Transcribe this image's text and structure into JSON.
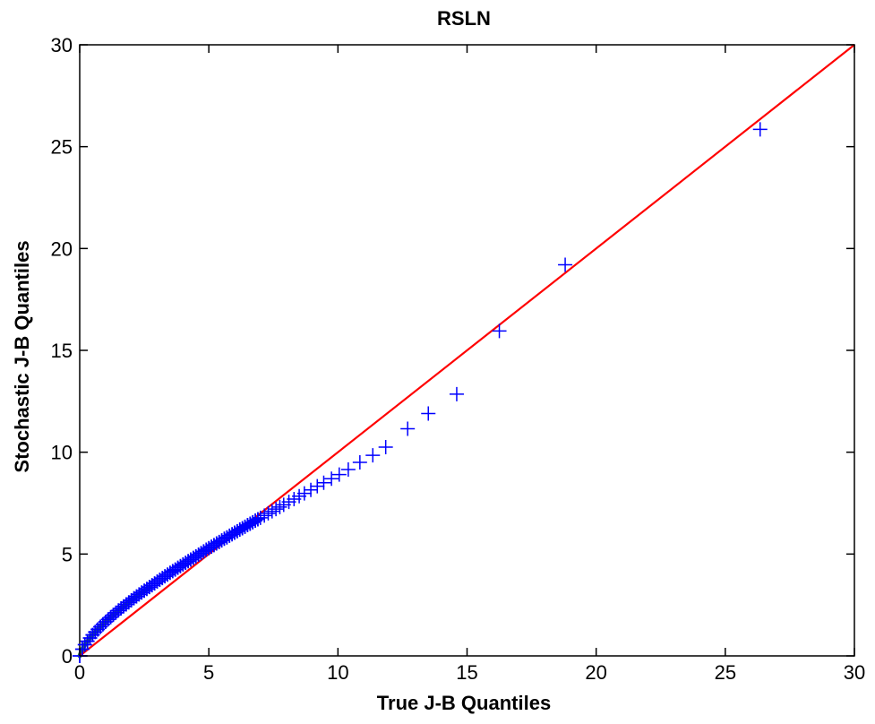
{
  "chart_data": {
    "type": "scatter",
    "title": "RSLN",
    "xlabel": "True J-B Quantiles",
    "ylabel": "Stochastic J-B Quantiles",
    "xlim": [
      0,
      30
    ],
    "ylim": [
      0,
      30
    ],
    "xticks": [
      0,
      5,
      10,
      15,
      20,
      25,
      30
    ],
    "yticks": [
      0,
      5,
      10,
      15,
      20,
      25,
      30
    ],
    "grid": false,
    "colors": {
      "points": "#0000ff",
      "reference_line": "#ff0000",
      "dense_band": "#2e7d32"
    },
    "reference_line": {
      "x": [
        0,
        30
      ],
      "y": [
        0,
        30
      ]
    },
    "marker": "plus",
    "series": [
      {
        "x": [
          0.0,
          0.1,
          0.2,
          0.3,
          0.4,
          0.5,
          0.6,
          0.7,
          0.8,
          0.9,
          1.0,
          1.1,
          1.2,
          1.3,
          1.4,
          1.5,
          1.6,
          1.7,
          1.8,
          1.9,
          2.0,
          2.1,
          2.2,
          2.3,
          2.4,
          2.5,
          2.6,
          2.7,
          2.8,
          2.9,
          3.0,
          3.1,
          3.2,
          3.3,
          3.4,
          3.5,
          3.6,
          3.7,
          3.8,
          3.9,
          4.0,
          4.1,
          4.2,
          4.3,
          4.4,
          4.5,
          4.6,
          4.7,
          4.8,
          4.9,
          5.0,
          5.1,
          5.2,
          5.3,
          5.4,
          5.5,
          5.6,
          5.7,
          5.8,
          5.9,
          6.0,
          6.1,
          6.2,
          6.3,
          6.4,
          6.5,
          6.6,
          6.7,
          6.8,
          6.9,
          7.0,
          7.15,
          7.3,
          7.45,
          7.6,
          7.75,
          7.9,
          8.1,
          8.3,
          8.5,
          8.7,
          8.95,
          9.2,
          9.45,
          9.75,
          10.05,
          10.4,
          10.85,
          11.35,
          11.85,
          12.7,
          13.5,
          14.6,
          16.25,
          18.8,
          26.35
        ],
        "y": [
          0.0,
          0.33,
          0.55,
          0.72,
          0.88,
          1.03,
          1.17,
          1.3,
          1.43,
          1.55,
          1.67,
          1.79,
          1.9,
          2.01,
          2.12,
          2.23,
          2.33,
          2.43,
          2.53,
          2.63,
          2.73,
          2.83,
          2.92,
          3.02,
          3.11,
          3.2,
          3.29,
          3.38,
          3.47,
          3.56,
          3.65,
          3.74,
          3.82,
          3.91,
          3.99,
          4.08,
          4.16,
          4.24,
          4.33,
          4.41,
          4.49,
          4.57,
          4.65,
          4.73,
          4.81,
          4.89,
          4.97,
          5.05,
          5.13,
          5.21,
          5.29,
          5.36,
          5.44,
          5.52,
          5.59,
          5.67,
          5.75,
          5.82,
          5.9,
          5.97,
          6.05,
          6.12,
          6.2,
          6.27,
          6.34,
          6.42,
          6.49,
          6.56,
          6.64,
          6.71,
          6.78,
          6.89,
          7.0,
          7.1,
          7.21,
          7.31,
          7.42,
          7.56,
          7.7,
          7.84,
          7.98,
          8.15,
          8.33,
          8.5,
          8.7,
          8.9,
          9.15,
          9.5,
          9.85,
          10.25,
          11.15,
          11.9,
          12.85,
          15.95,
          19.2,
          25.85
        ]
      }
    ]
  }
}
